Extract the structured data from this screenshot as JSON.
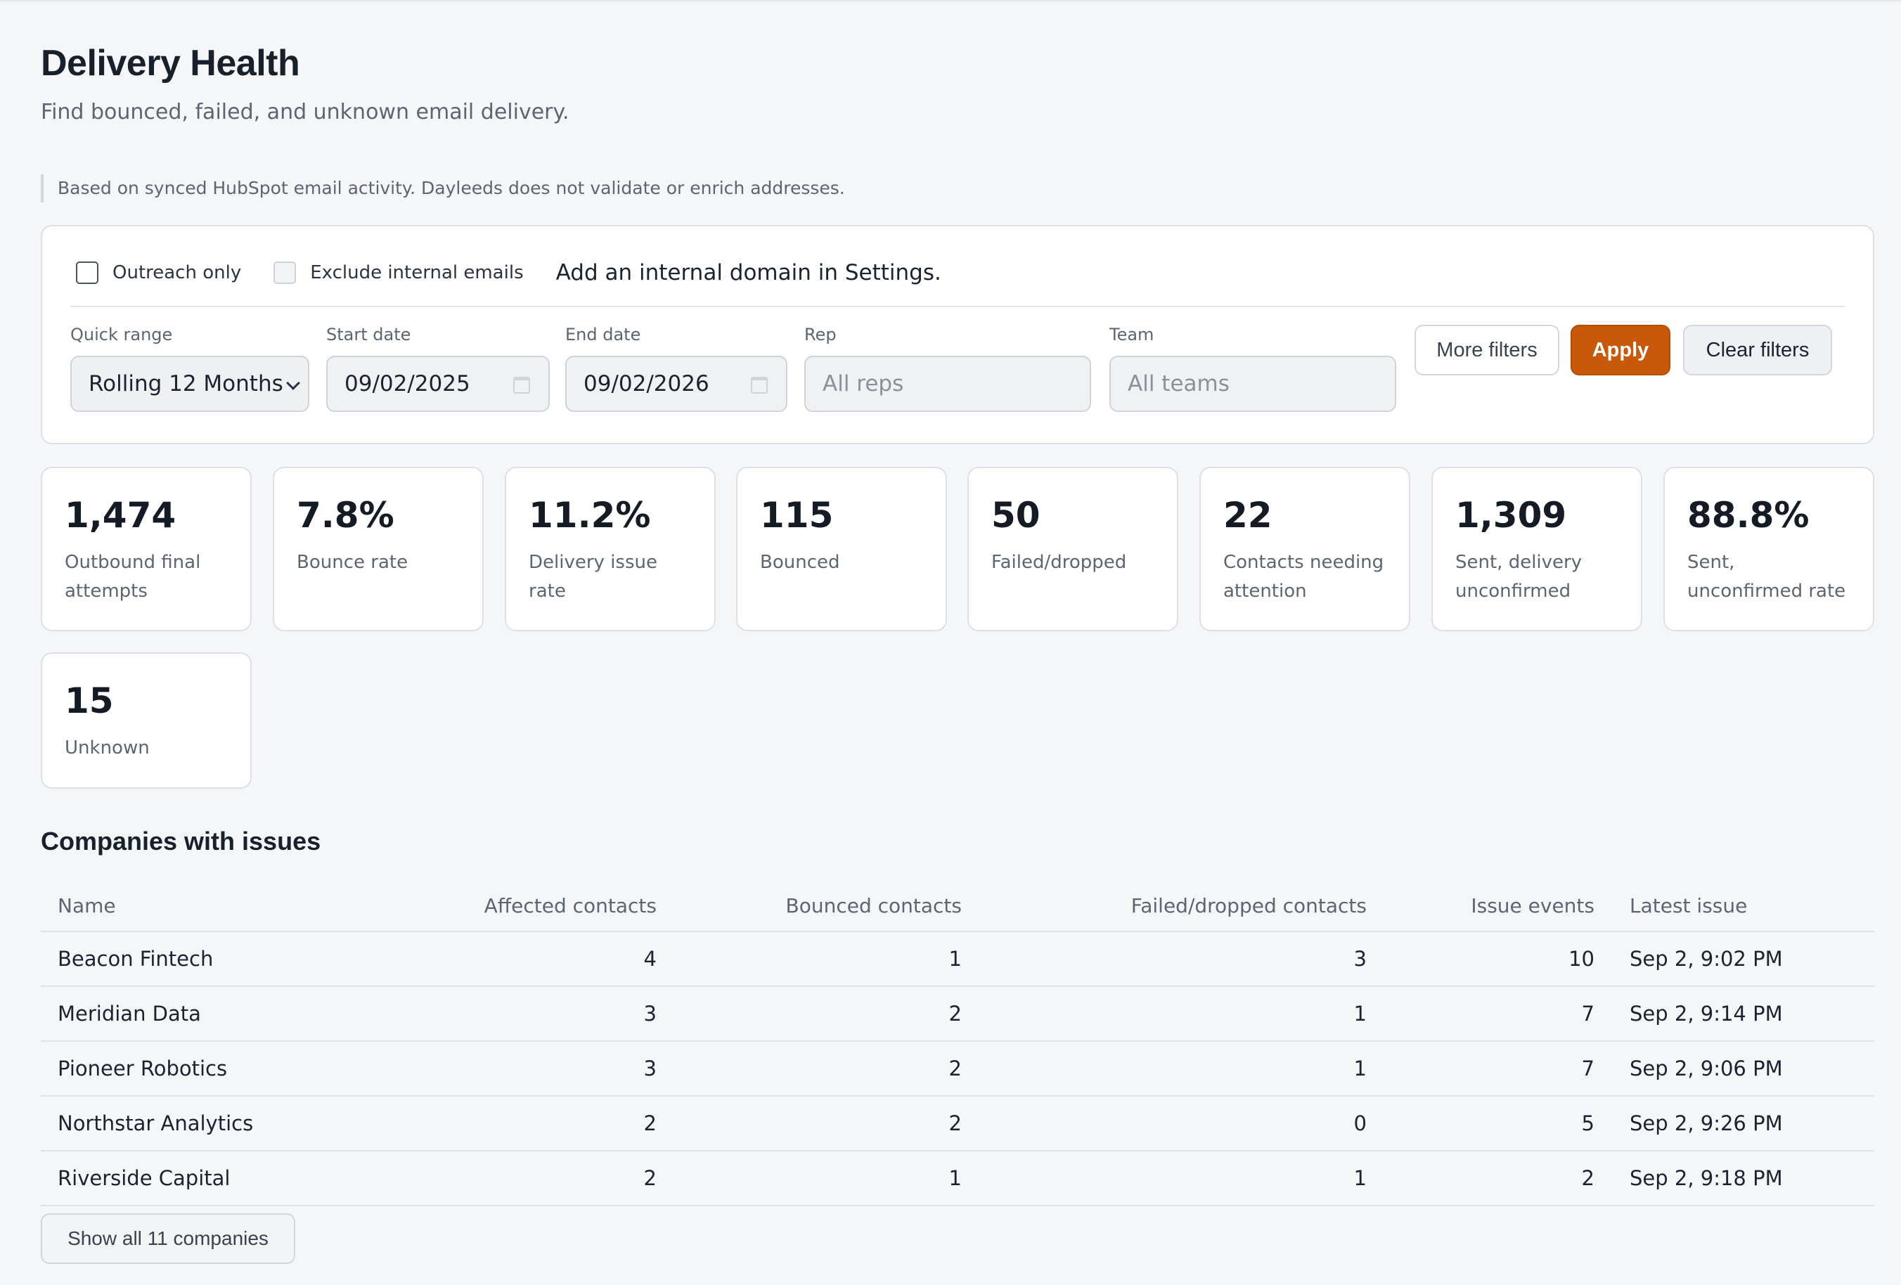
{
  "header": {
    "title": "Delivery Health",
    "subtitle": "Find bounced, failed, and unknown email delivery."
  },
  "notice": "Based on synced HubSpot email activity. Dayleeds does not validate or enrich addresses.",
  "filters": {
    "outreach_only": {
      "label": "Outreach only",
      "checked": false
    },
    "exclude_internal": {
      "label": "Exclude internal emails",
      "checked": false,
      "disabled": true
    },
    "hint": "Add an internal domain in Settings.",
    "quick_range": {
      "label": "Quick range",
      "value": "Rolling 12 Months"
    },
    "start_date": {
      "label": "Start date",
      "value": "09/02/2025"
    },
    "end_date": {
      "label": "End date",
      "value": "09/02/2026"
    },
    "rep": {
      "label": "Rep",
      "placeholder": "All reps"
    },
    "team": {
      "label": "Team",
      "placeholder": "All teams"
    },
    "more_filters": "More filters",
    "apply": "Apply",
    "clear": "Clear filters"
  },
  "metrics": [
    {
      "value": "1,474",
      "label": "Outbound final attempts"
    },
    {
      "value": "7.8%",
      "label": "Bounce rate"
    },
    {
      "value": "11.2%",
      "label": "Delivery issue rate"
    },
    {
      "value": "115",
      "label": "Bounced"
    },
    {
      "value": "50",
      "label": "Failed/dropped"
    },
    {
      "value": "22",
      "label": "Contacts needing attention"
    },
    {
      "value": "1,309",
      "label": "Sent, delivery unconfirmed"
    },
    {
      "value": "88.8%",
      "label": "Sent, unconfirmed rate"
    },
    {
      "value": "15",
      "label": "Unknown"
    }
  ],
  "companies": {
    "title": "Companies with issues",
    "columns": [
      "Name",
      "Affected contacts",
      "Bounced contacts",
      "Failed/dropped contacts",
      "Issue events",
      "Latest issue"
    ],
    "rows": [
      [
        "Beacon Fintech",
        "4",
        "1",
        "3",
        "10",
        "Sep 2, 9:02 PM"
      ],
      [
        "Meridian Data",
        "3",
        "2",
        "1",
        "7",
        "Sep 2, 9:14 PM"
      ],
      [
        "Pioneer Robotics",
        "3",
        "2",
        "1",
        "7",
        "Sep 2, 9:06 PM"
      ],
      [
        "Northstar Analytics",
        "2",
        "2",
        "0",
        "5",
        "Sep 2, 9:26 PM"
      ],
      [
        "Riverside Capital",
        "2",
        "1",
        "1",
        "2",
        "Sep 2, 9:18 PM"
      ]
    ],
    "show_all": "Show all 11 companies"
  },
  "colors": {
    "accent": "#c8580a",
    "background": "#f5f6f8",
    "card": "#ffffff"
  }
}
